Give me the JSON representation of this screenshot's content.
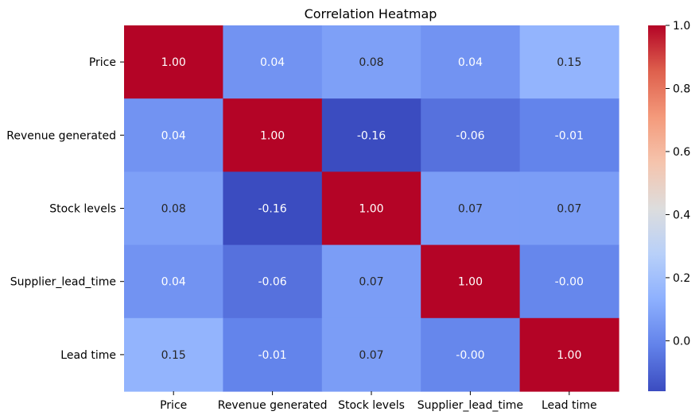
{
  "chart_data": {
    "type": "heatmap",
    "title": "Correlation Heatmap",
    "x_categories": [
      "Price",
      "Revenue generated",
      "Stock levels",
      "Supplier_lead_time",
      "Lead time"
    ],
    "y_categories": [
      "Price",
      "Revenue generated",
      "Stock levels",
      "Supplier_lead_time",
      "Lead time"
    ],
    "values": [
      [
        1.0,
        0.04,
        0.08,
        0.04,
        0.15
      ],
      [
        0.04,
        1.0,
        -0.16,
        -0.06,
        -0.01
      ],
      [
        0.08,
        -0.16,
        1.0,
        0.07,
        0.07
      ],
      [
        0.04,
        -0.06,
        0.07,
        1.0,
        -0.0
      ],
      [
        0.15,
        -0.01,
        0.07,
        -0.0,
        1.0
      ]
    ],
    "labels": [
      [
        "1.00",
        "0.04",
        "0.08",
        "0.04",
        "0.15"
      ],
      [
        "0.04",
        "1.00",
        "-0.16",
        "-0.06",
        "-0.01"
      ],
      [
        "0.08",
        "-0.16",
        "1.00",
        "0.07",
        "0.07"
      ],
      [
        "0.04",
        "-0.06",
        "0.07",
        "1.00",
        "-0.00"
      ],
      [
        "0.15",
        "-0.01",
        "0.07",
        "-0.00",
        "1.00"
      ]
    ],
    "colormap": "coolwarm",
    "vmin": -0.16,
    "vmax": 1.0,
    "colorbar_ticks": [
      0.0,
      0.2,
      0.4,
      0.6,
      0.8,
      1.0
    ],
    "colorbar_tick_labels": [
      "0.0",
      "0.2",
      "0.4",
      "0.6",
      "0.8",
      "1.0"
    ]
  }
}
